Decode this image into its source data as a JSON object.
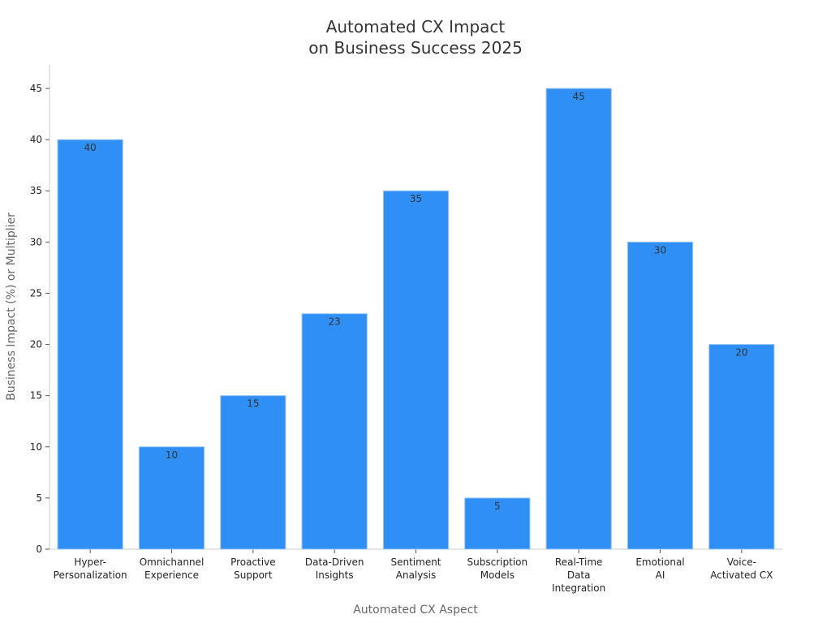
{
  "chart_data": {
    "type": "bar",
    "title": [
      "Automated CX Impact",
      "on Business Success 2025"
    ],
    "xlabel": "Automated CX Aspect",
    "ylabel": "Business Impact (%) or Multiplier",
    "categories": [
      [
        "Hyper-",
        "Personalization"
      ],
      [
        "Omnichannel",
        "Experience"
      ],
      [
        "Proactive",
        "Support"
      ],
      [
        "Data-Driven",
        "Insights"
      ],
      [
        "Sentiment",
        "Analysis"
      ],
      [
        "Subscription",
        "Models"
      ],
      [
        "Real-Time",
        "Data",
        "Integration"
      ],
      [
        "Emotional",
        "AI"
      ],
      [
        "Voice-",
        "Activated CX"
      ]
    ],
    "values": [
      40,
      10,
      15,
      23,
      35,
      5,
      45,
      30,
      20
    ],
    "ylim": [
      0,
      47.3
    ],
    "yticks": [
      0,
      5,
      10,
      15,
      20,
      25,
      30,
      35,
      40,
      45
    ],
    "bar_color": "#2f8ff5",
    "bar_edge_color": "#9cc8f5",
    "grid": false,
    "legend": "none"
  }
}
